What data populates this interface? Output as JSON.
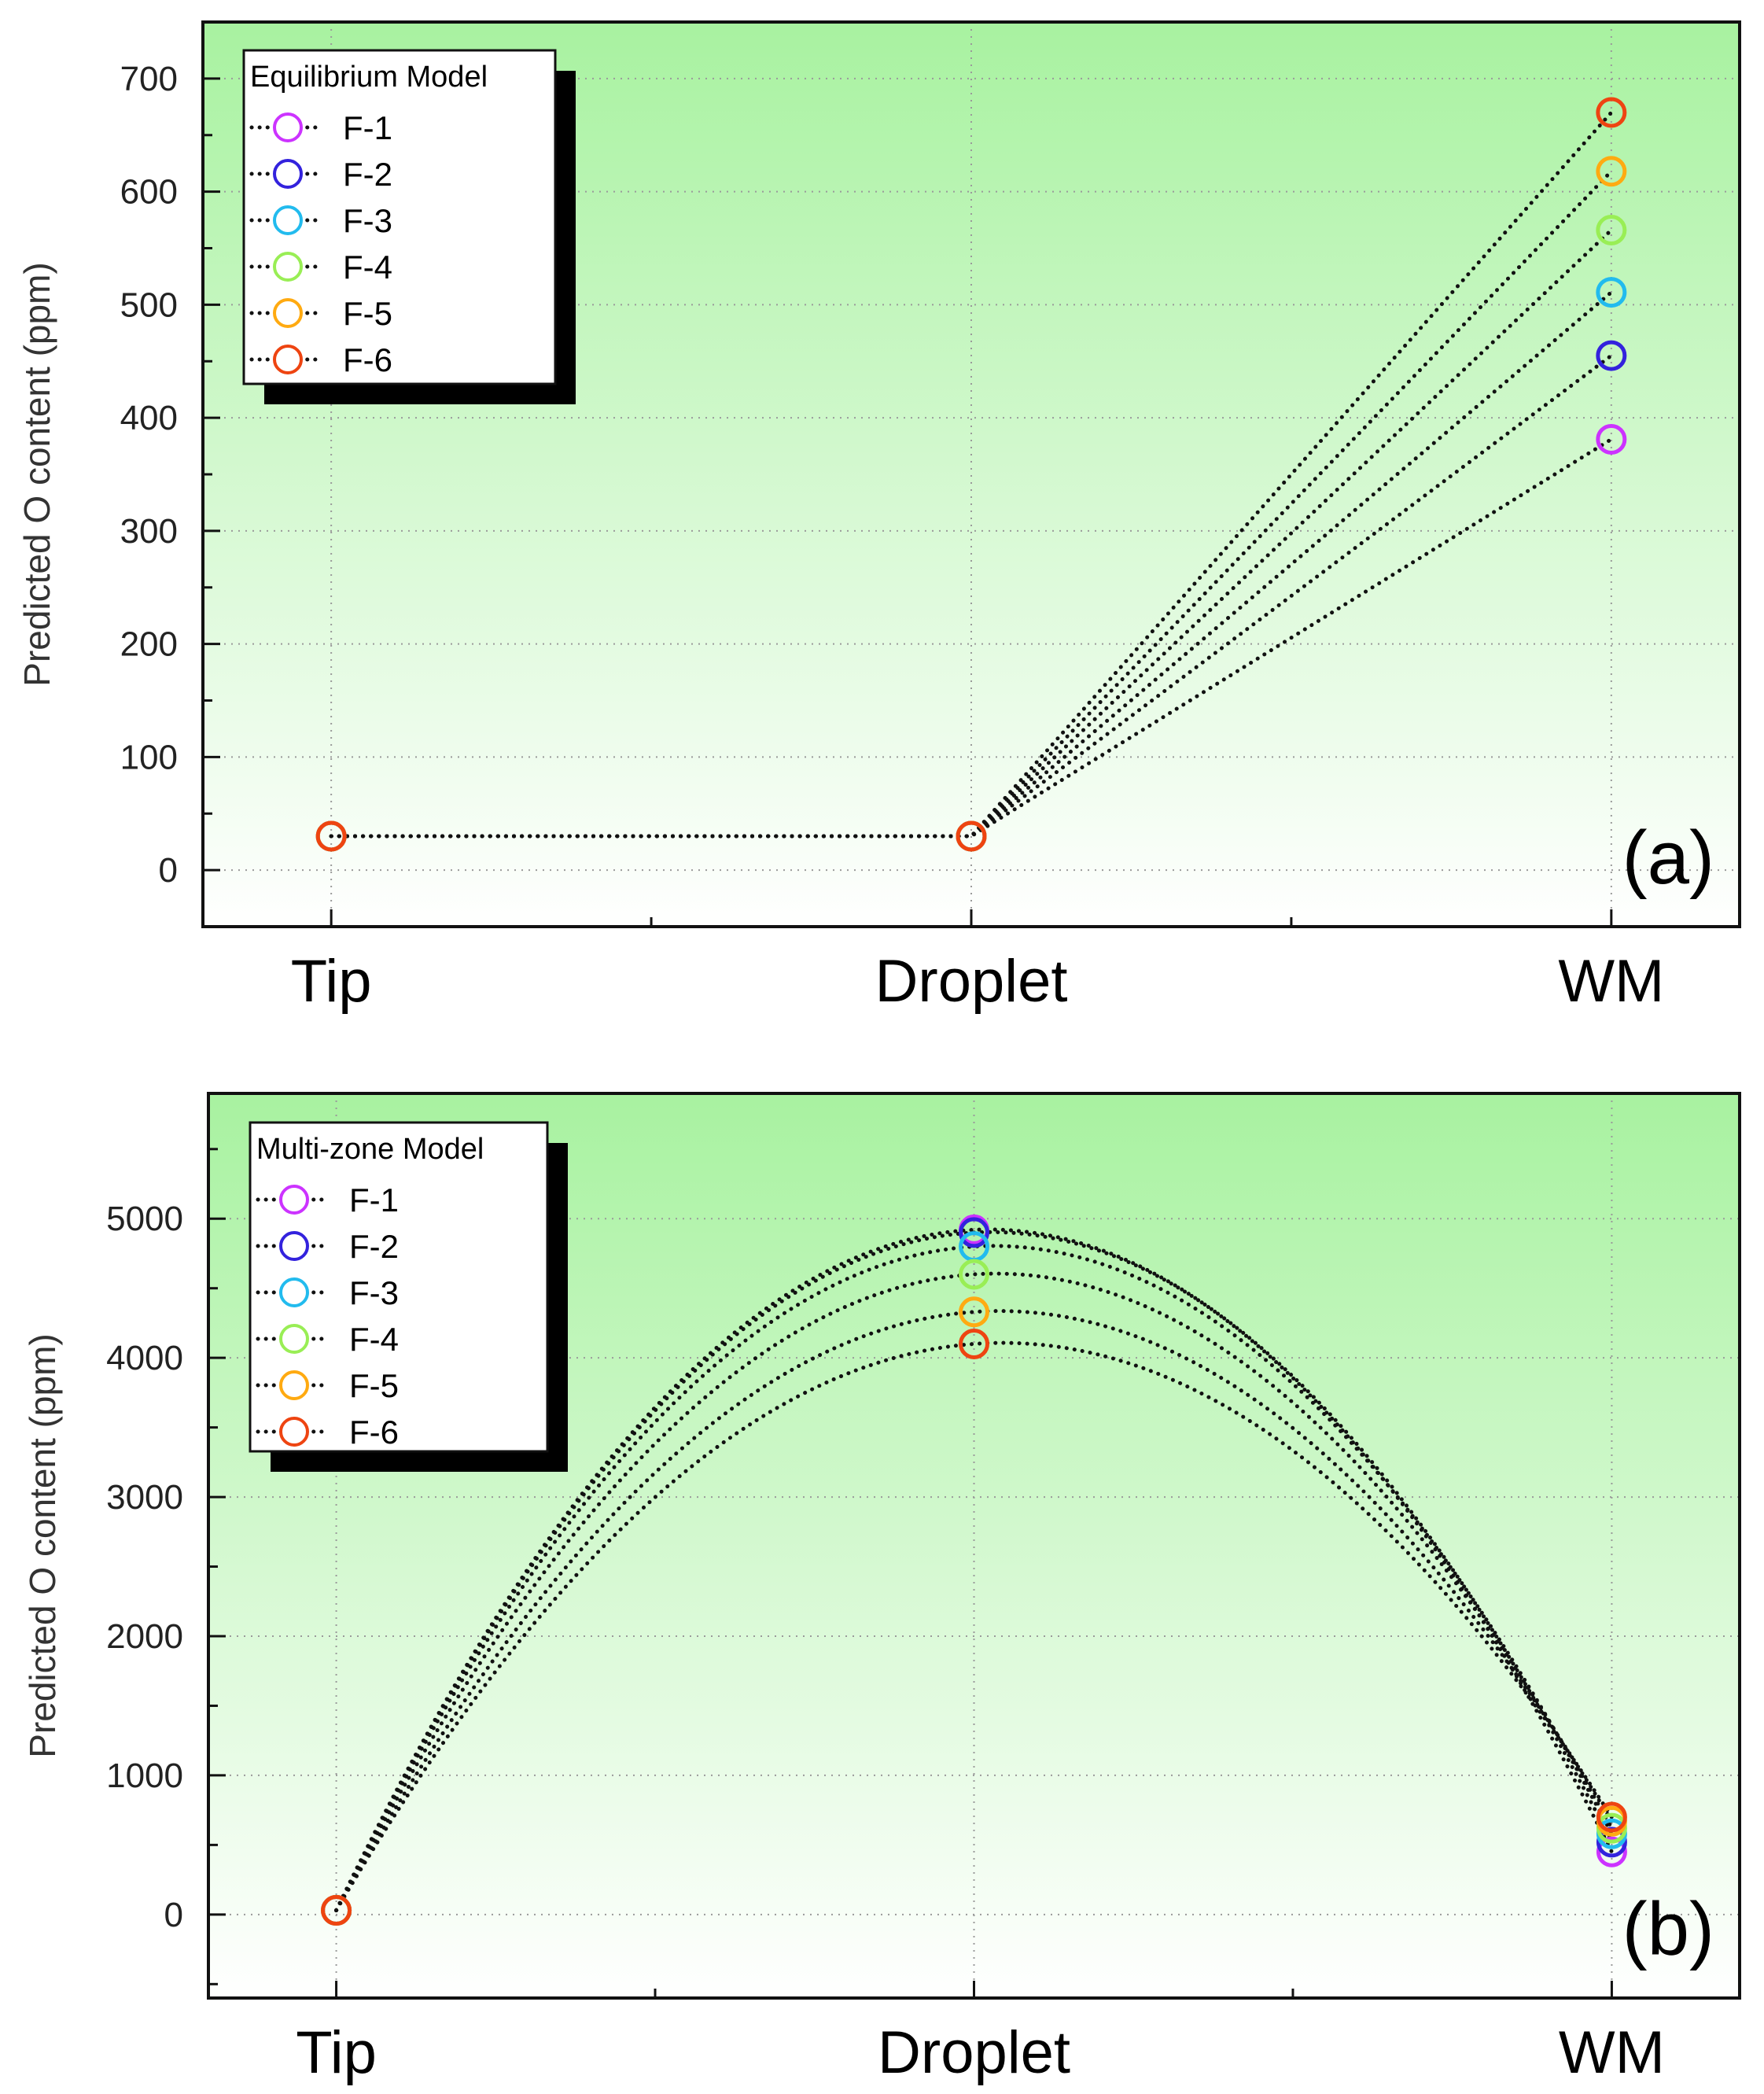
{
  "chart_data": [
    {
      "type": "line",
      "panel_label": "(a)",
      "legend_title": "Equilibrium Model",
      "legend_placement": "top-left",
      "categories": [
        "Tip",
        "Droplet",
        "WM"
      ],
      "ylabel": "Predicted O content (ppm)",
      "xlabel": "",
      "ylim": [
        -50,
        750
      ],
      "yticks": [
        0,
        100,
        200,
        300,
        400,
        500,
        600,
        700
      ],
      "grid": true,
      "line_style": "dotted, straight segments",
      "series": [
        {
          "name": "F-1",
          "color": "#cc33ff",
          "values": [
            30,
            30,
            381
          ]
        },
        {
          "name": "F-2",
          "color": "#3322dd",
          "values": [
            30,
            30,
            455
          ]
        },
        {
          "name": "F-3",
          "color": "#22bbee",
          "values": [
            30,
            30,
            511
          ]
        },
        {
          "name": "F-4",
          "color": "#99ee55",
          "values": [
            30,
            30,
            566
          ]
        },
        {
          "name": "F-5",
          "color": "#ffaa11",
          "values": [
            30,
            30,
            618
          ]
        },
        {
          "name": "F-6",
          "color": "#ee4411",
          "values": [
            30,
            30,
            670
          ]
        }
      ]
    },
    {
      "type": "line",
      "panel_label": "(b)",
      "legend_title": "Multi-zone Model",
      "legend_placement": "top-left",
      "categories": [
        "Tip",
        "Droplet",
        "WM"
      ],
      "ylabel": "Predicted O content (ppm)",
      "xlabel": "",
      "ylim": [
        -600,
        5900
      ],
      "yticks": [
        0,
        1000,
        2000,
        3000,
        4000,
        5000
      ],
      "grid": true,
      "line_style": "dotted, smooth curves",
      "series": [
        {
          "name": "F-1",
          "color": "#cc33ff",
          "values": [
            30,
            4920,
            450
          ]
        },
        {
          "name": "F-2",
          "color": "#3322dd",
          "values": [
            30,
            4900,
            520
          ]
        },
        {
          "name": "F-3",
          "color": "#22bbee",
          "values": [
            30,
            4800,
            580
          ]
        },
        {
          "name": "F-4",
          "color": "#99ee55",
          "values": [
            30,
            4600,
            620
          ]
        },
        {
          "name": "F-5",
          "color": "#ffaa11",
          "values": [
            30,
            4330,
            670
          ]
        },
        {
          "name": "F-6",
          "color": "#ee4411",
          "values": [
            30,
            4100,
            700
          ]
        }
      ]
    }
  ]
}
